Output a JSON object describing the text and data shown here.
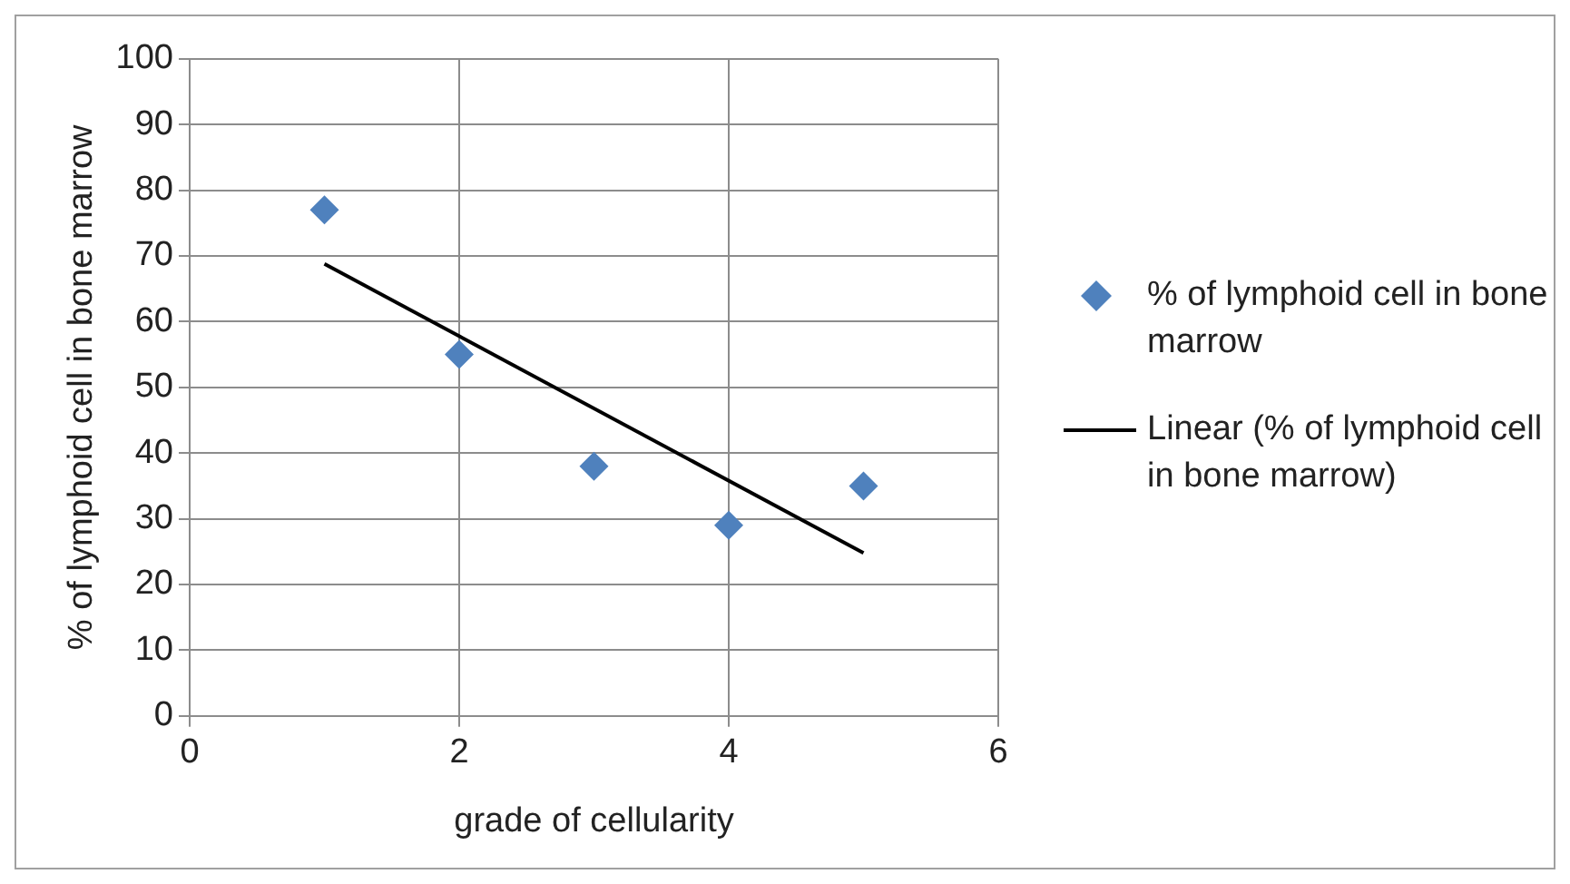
{
  "chart_data": {
    "type": "scatter",
    "xlabel": "grade of cellularity",
    "ylabel": "% of lymphoid cell in bone marrow",
    "xlim": [
      0,
      6
    ],
    "xticks": [
      0,
      2,
      4,
      6
    ],
    "ylim": [
      0,
      100
    ],
    "yticks": [
      0,
      10,
      20,
      30,
      40,
      50,
      60,
      70,
      80,
      90,
      100
    ],
    "grid": true,
    "legend": "right",
    "marker": "diamond",
    "series": [
      {
        "name": "% of lymphoid cell in bone marrow",
        "color": "#4f81bd",
        "x": [
          1,
          2,
          3,
          4,
          5
        ],
        "values": [
          77,
          55,
          38,
          29,
          35
        ]
      },
      {
        "name": "Linear (% of lymphoid cell in bone marrow)",
        "type": "line",
        "color": "#000000",
        "marker": "none",
        "x": [
          1,
          5
        ],
        "values": [
          68.8,
          24.8
        ]
      }
    ]
  }
}
